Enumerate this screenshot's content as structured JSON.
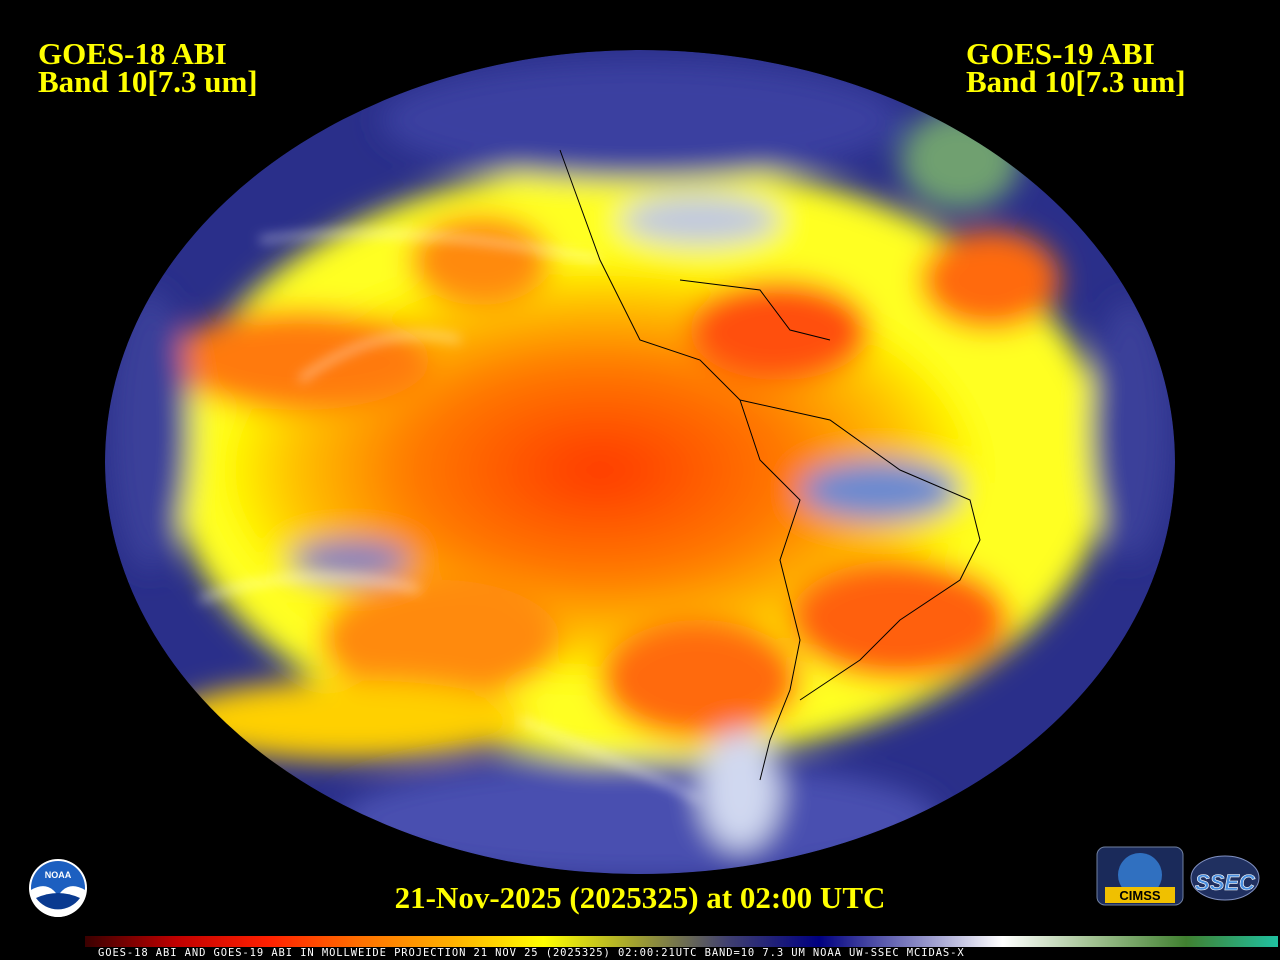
{
  "left_title": {
    "line1": "GOES-18 ABI",
    "line2": "Band 10[7.3 um]"
  },
  "right_title": {
    "line1": "GOES-19 ABI",
    "line2": "Band 10[7.3 um]"
  },
  "date_label": "21-Nov-2025 (2025325) at 02:00 UTC",
  "footer_text": "GOES-18 ABI AND GOES-19 ABI IN MOLLWEIDE PROJECTION 21 NOV 25 (2025325) 02:00:21UTC BAND=10 7.3 UM NOAA UW-SSEC MCIDAS-X",
  "logos": {
    "noaa": "NOAA",
    "cimss": "CIMSS",
    "ssec": "SSEC"
  },
  "colorbar_colors": [
    "#3a0000",
    "#c00000",
    "#ff2000",
    "#ff7000",
    "#ffb000",
    "#ffff00",
    "#a0a030",
    "#404070",
    "#000080",
    "#8080c0",
    "#ffffff",
    "#a0c090",
    "#408030",
    "#20c0a0"
  ]
}
